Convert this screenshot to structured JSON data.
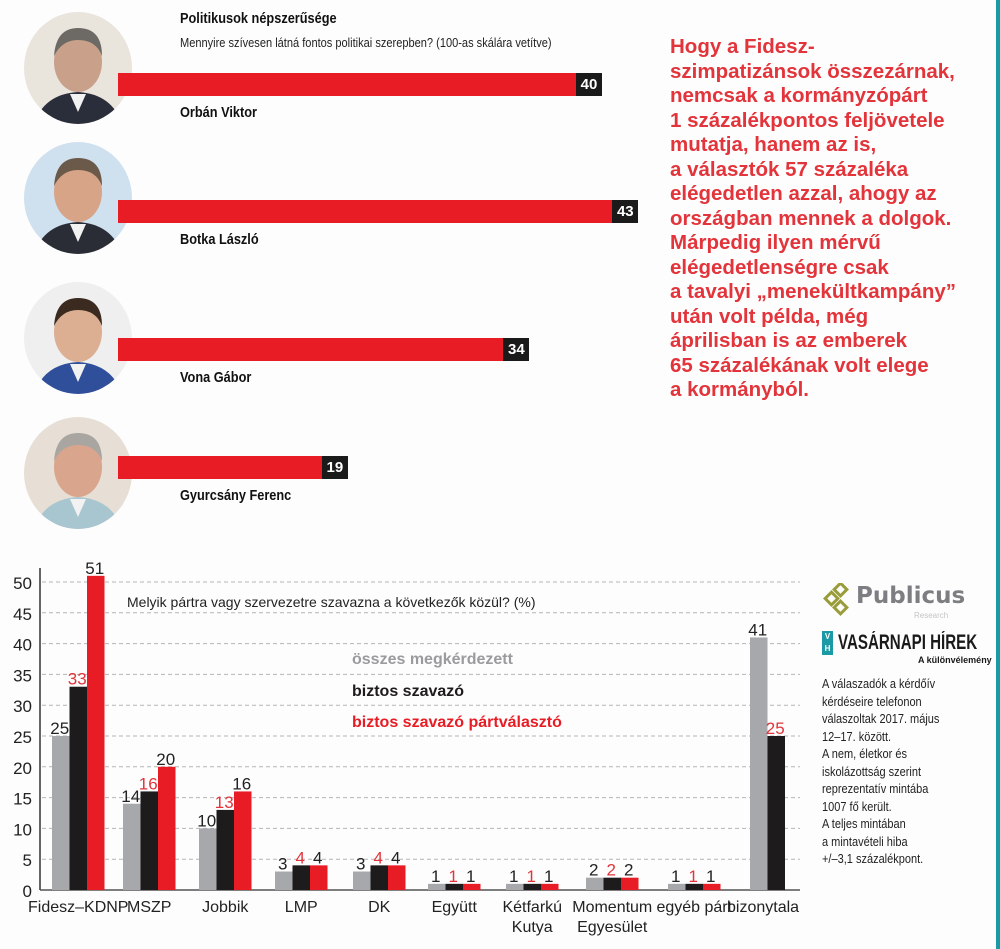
{
  "popularity": {
    "title": "Politikusok népszerűsége",
    "subtitle": "Mennyire szívesen látná fontos politikai szerepben? (100-as skálára vetítve)",
    "scale_max": 100,
    "items": [
      {
        "name": "Orbán Viktor",
        "value": 40,
        "value_label": "40"
      },
      {
        "name": "Botka László",
        "value": 43,
        "value_label": "43"
      },
      {
        "name": "Vona Gábor",
        "value": 34,
        "value_label": "34"
      },
      {
        "name": "Gyurcsány Ferenc",
        "value": 19,
        "value_label": "19"
      }
    ]
  },
  "quote": {
    "lines": [
      "Hogy a Fidesz-",
      "szimpatizánsok összezárnak,",
      "nemcsak a kormányzópárt",
      "1 százalékpontos feljövetele",
      "mutatja, hanem az is,",
      "a választók 57 százaléka",
      "elégedetlen azzal, ahogy az",
      "országban mennek a dolgok.",
      "Márpedig ilyen mérvű",
      "elégedetlenségre csak",
      "a tavalyi „menekültkampány”",
      "után volt példa, még",
      "áprilisban is az emberek",
      "65 százalékának volt elege",
      "a kormányból."
    ]
  },
  "brands": {
    "publicus": "Publicus",
    "publicus_sub": "Research",
    "vh_mark_top": "V",
    "vh_mark_bottom": "H",
    "vh_name": "VASÁRNAPI HÍREK",
    "vh_tagline": "A különvélemény"
  },
  "methodology": {
    "lines": [
      "A válaszadók a kérdőív",
      "kérdéseire telefonon",
      "válaszoltak 2017. május",
      "12–17. között.",
      "A nem, életkor és",
      "iskolázottság szerint",
      "reprezentatív mintába",
      "1007 fő került.",
      "A teljes mintában",
      "a mintavételi hiba",
      "+/–3,1 százalékpont."
    ]
  },
  "colors": {
    "red": "#e81c24",
    "black": "#1d1b1c",
    "gray": "#a7a8ab",
    "quote_red": "#e2343a",
    "teal": "#1a9aa5",
    "olive": "#9a9c3a"
  },
  "chart_data": {
    "type": "bar",
    "title": "Melyik pártra vagy szervezetre szavazna a következők közül? (%)",
    "xlabel": "",
    "ylabel": "",
    "ylim": [
      0,
      50
    ],
    "yticks": [
      0,
      5,
      10,
      15,
      20,
      25,
      30,
      35,
      40,
      45,
      50
    ],
    "grid": true,
    "legend_position": "top-center",
    "categories": [
      [
        "Fidesz–KDNP"
      ],
      [
        "MSZP"
      ],
      [
        "Jobbik"
      ],
      [
        "LMP"
      ],
      [
        "DK"
      ],
      [
        "Együtt"
      ],
      [
        "Kétfarkú",
        "Kutya"
      ],
      [
        "Momentum",
        "Egyesület"
      ],
      [
        "egyéb párt"
      ],
      [
        "bizonytalan"
      ]
    ],
    "series": [
      {
        "name": "összes megkérdezett",
        "color": "#a7a8ab",
        "label_color": "#222222",
        "values": [
          25,
          14,
          10,
          3,
          3,
          1,
          1,
          2,
          1,
          41
        ]
      },
      {
        "name": "biztos szavazó",
        "color": "#1d1b1c",
        "label_color": "#e2343a",
        "values": [
          33,
          16,
          13,
          4,
          4,
          1,
          1,
          2,
          1,
          25
        ]
      },
      {
        "name": "biztos szavazó pártválasztó",
        "color": "#e81c24",
        "label_color": "#222222",
        "values": [
          51,
          20,
          16,
          4,
          4,
          1,
          1,
          2,
          1,
          null
        ]
      }
    ]
  }
}
